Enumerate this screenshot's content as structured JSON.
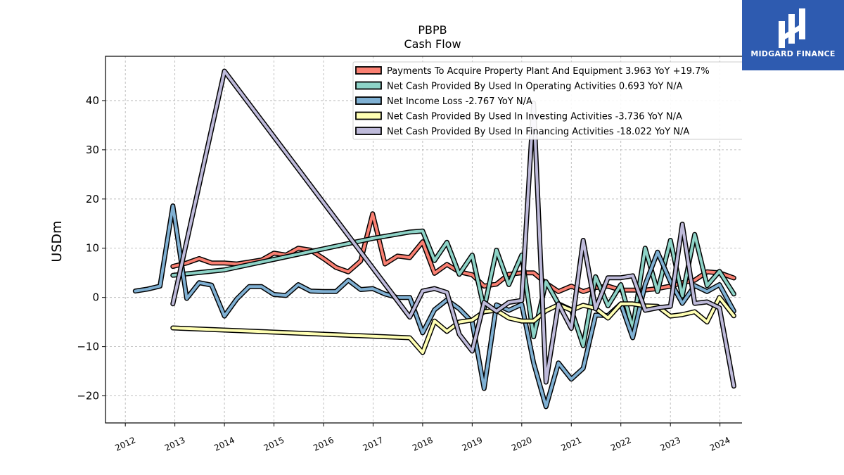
{
  "logo": {
    "text": "MIDGARD FINANCE"
  },
  "chart_data": {
    "type": "line",
    "title": "PBPB",
    "subtitle": "Cash Flow",
    "xlabel": "",
    "ylabel": "USDm",
    "xlim": [
      2011.6,
      2024.8
    ],
    "ylim": [
      -25.5,
      49
    ],
    "x_ticks": [
      "2012",
      "2013",
      "2014",
      "2015",
      "2016",
      "2017",
      "2018",
      "2019",
      "2020",
      "2021",
      "2022",
      "2023",
      "2024"
    ],
    "y_ticks": [
      40,
      30,
      20,
      10,
      0,
      -10,
      -20
    ],
    "y_tick_labels": [
      "40",
      "30",
      "20",
      "10",
      "0",
      "−10",
      "−20"
    ],
    "grid": true,
    "legend_position": "top-right",
    "series": [
      {
        "name": "Payments To Acquire Property Plant And Equipment  3.963 YoY +19.7%",
        "color": "#fa8072",
        "points": [
          [
            2012.96,
            6.3
          ],
          [
            2013.24,
            7.0
          ],
          [
            2013.49,
            7.9
          ],
          [
            2013.74,
            7.0
          ],
          [
            2014.0,
            7.0
          ],
          [
            2014.25,
            6.8
          ],
          [
            2014.5,
            7.2
          ],
          [
            2014.75,
            7.6
          ],
          [
            2015.0,
            9.0
          ],
          [
            2015.24,
            8.6
          ],
          [
            2015.49,
            10.0
          ],
          [
            2015.74,
            9.6
          ],
          [
            2016.0,
            7.9
          ],
          [
            2016.25,
            6.1
          ],
          [
            2016.5,
            5.2
          ],
          [
            2016.75,
            7.4
          ],
          [
            2016.99,
            17.0
          ],
          [
            2017.24,
            6.8
          ],
          [
            2017.49,
            8.4
          ],
          [
            2017.74,
            8.1
          ],
          [
            2018.0,
            11.3
          ],
          [
            2018.24,
            4.9
          ],
          [
            2018.49,
            6.7
          ],
          [
            2018.74,
            5.2
          ],
          [
            2019.0,
            4.6
          ],
          [
            2019.24,
            2.3
          ],
          [
            2019.49,
            2.7
          ],
          [
            2019.74,
            4.7
          ],
          [
            2020.0,
            5.0
          ],
          [
            2020.24,
            5.0
          ],
          [
            2020.49,
            2.9
          ],
          [
            2020.74,
            1.2
          ],
          [
            2021.0,
            2.3
          ],
          [
            2021.24,
            1.2
          ],
          [
            2021.49,
            2.0
          ],
          [
            2021.74,
            2.3
          ],
          [
            2022.0,
            1.5
          ],
          [
            2022.24,
            1.5
          ],
          [
            2022.49,
            1.5
          ],
          [
            2022.74,
            1.8
          ],
          [
            2023.0,
            2.3
          ],
          [
            2023.24,
            3.0
          ],
          [
            2023.49,
            3.5
          ],
          [
            2023.74,
            5.2
          ],
          [
            2023.99,
            5.0
          ],
          [
            2024.28,
            3.96
          ]
        ]
      },
      {
        "name": "Net Cash Provided By Used In Operating Activities  0.693 YoY N/A",
        "color": "#8dd3c7",
        "points": [
          [
            2012.96,
            4.5
          ],
          [
            2014.0,
            5.6
          ],
          [
            2016.99,
            12.0
          ],
          [
            2017.74,
            13.3
          ],
          [
            2018.0,
            13.5
          ],
          [
            2018.24,
            7.5
          ],
          [
            2018.49,
            11.2
          ],
          [
            2018.74,
            4.7
          ],
          [
            2019.0,
            8.6
          ],
          [
            2019.24,
            -2.3
          ],
          [
            2019.49,
            9.6
          ],
          [
            2019.74,
            2.6
          ],
          [
            2020.0,
            8.6
          ],
          [
            2020.24,
            -8.0
          ],
          [
            2020.49,
            3.2
          ],
          [
            2020.74,
            -1.3
          ],
          [
            2021.0,
            -2.5
          ],
          [
            2021.24,
            -9.8
          ],
          [
            2021.49,
            4.2
          ],
          [
            2021.74,
            -1.7
          ],
          [
            2022.0,
            2.6
          ],
          [
            2022.24,
            -6.3
          ],
          [
            2022.49,
            10.0
          ],
          [
            2022.74,
            1.2
          ],
          [
            2023.0,
            11.6
          ],
          [
            2023.24,
            0.3
          ],
          [
            2023.49,
            12.8
          ],
          [
            2023.74,
            2.4
          ],
          [
            2023.99,
            5.3
          ],
          [
            2024.28,
            0.69
          ]
        ]
      },
      {
        "name": "Net Income Loss  -2.767 YoY N/A",
        "color": "#7fb0d3",
        "points": [
          [
            2012.2,
            1.3
          ],
          [
            2012.45,
            1.7
          ],
          [
            2012.7,
            2.3
          ],
          [
            2012.96,
            18.6
          ],
          [
            2013.24,
            -0.2
          ],
          [
            2013.49,
            3.0
          ],
          [
            2013.74,
            2.5
          ],
          [
            2014.0,
            -3.8
          ],
          [
            2014.25,
            -0.3
          ],
          [
            2014.5,
            2.2
          ],
          [
            2014.75,
            2.2
          ],
          [
            2015.0,
            0.6
          ],
          [
            2015.24,
            0.4
          ],
          [
            2015.49,
            2.6
          ],
          [
            2015.74,
            1.3
          ],
          [
            2016.0,
            1.2
          ],
          [
            2016.25,
            1.2
          ],
          [
            2016.5,
            3.5
          ],
          [
            2016.75,
            1.6
          ],
          [
            2016.99,
            1.8
          ],
          [
            2017.24,
            0.7
          ],
          [
            2017.49,
            0.0
          ],
          [
            2017.74,
            0.0
          ],
          [
            2018.0,
            -7.2
          ],
          [
            2018.24,
            -2.5
          ],
          [
            2018.49,
            -0.5
          ],
          [
            2018.74,
            -2.3
          ],
          [
            2019.0,
            -5.0
          ],
          [
            2019.24,
            -18.5
          ],
          [
            2019.49,
            -1.5
          ],
          [
            2019.74,
            -2.6
          ],
          [
            2020.0,
            -1.4
          ],
          [
            2020.24,
            -13.3
          ],
          [
            2020.49,
            -22.2
          ],
          [
            2020.74,
            -13.3
          ],
          [
            2021.0,
            -16.6
          ],
          [
            2021.24,
            -14.4
          ],
          [
            2021.49,
            -3.6
          ],
          [
            2021.74,
            -3.7
          ],
          [
            2022.0,
            -1.3
          ],
          [
            2022.24,
            -8.2
          ],
          [
            2022.49,
            2.6
          ],
          [
            2022.74,
            9.2
          ],
          [
            2023.0,
            3.2
          ],
          [
            2023.24,
            -1.2
          ],
          [
            2023.49,
            2.4
          ],
          [
            2023.74,
            1.2
          ],
          [
            2023.99,
            2.6
          ],
          [
            2024.28,
            -2.77
          ]
        ]
      },
      {
        "name": "Net Cash Provided By Used In Investing Activities  -3.736 YoY N/A",
        "color": "#ffffb3",
        "points": [
          [
            2012.96,
            -6.2
          ],
          [
            2017.74,
            -8.2
          ],
          [
            2018.0,
            -11.2
          ],
          [
            2018.24,
            -4.8
          ],
          [
            2018.49,
            -6.9
          ],
          [
            2018.74,
            -5.0
          ],
          [
            2019.0,
            -4.6
          ],
          [
            2019.24,
            -2.9
          ],
          [
            2019.49,
            -2.6
          ],
          [
            2019.74,
            -4.2
          ],
          [
            2020.0,
            -4.8
          ],
          [
            2020.24,
            -4.8
          ],
          [
            2020.49,
            -2.7
          ],
          [
            2020.74,
            -1.5
          ],
          [
            2021.0,
            -2.6
          ],
          [
            2021.24,
            -1.6
          ],
          [
            2021.49,
            -2.2
          ],
          [
            2021.74,
            -4.2
          ],
          [
            2022.0,
            -1.3
          ],
          [
            2022.24,
            -1.3
          ],
          [
            2022.49,
            -1.7
          ],
          [
            2022.74,
            -1.8
          ],
          [
            2023.0,
            -3.8
          ],
          [
            2023.24,
            -3.5
          ],
          [
            2023.49,
            -2.9
          ],
          [
            2023.74,
            -5.0
          ],
          [
            2023.99,
            0.0
          ],
          [
            2024.28,
            -3.74
          ]
        ]
      },
      {
        "name": "Net Cash Provided By Used In Financing Activities  -18.022 YoY N/A",
        "color": "#bebada",
        "points": [
          [
            2012.96,
            -1.3
          ],
          [
            2014.0,
            46.0
          ],
          [
            2017.74,
            -4.0
          ],
          [
            2018.0,
            1.3
          ],
          [
            2018.24,
            1.8
          ],
          [
            2018.49,
            1.0
          ],
          [
            2018.74,
            -7.5
          ],
          [
            2019.0,
            -10.9
          ],
          [
            2019.24,
            -1.0
          ],
          [
            2019.49,
            -2.8
          ],
          [
            2019.74,
            -1.0
          ],
          [
            2020.0,
            -0.6
          ],
          [
            2020.24,
            39.5
          ],
          [
            2020.49,
            -17.2
          ],
          [
            2020.74,
            -1.3
          ],
          [
            2021.0,
            -6.3
          ],
          [
            2021.24,
            11.6
          ],
          [
            2021.49,
            -2.3
          ],
          [
            2021.74,
            4.0
          ],
          [
            2022.0,
            4.0
          ],
          [
            2022.24,
            4.4
          ],
          [
            2022.49,
            -2.6
          ],
          [
            2022.74,
            -2.1
          ],
          [
            2023.0,
            -1.8
          ],
          [
            2023.24,
            14.9
          ],
          [
            2023.49,
            -1.2
          ],
          [
            2023.74,
            -0.9
          ],
          [
            2023.99,
            -2.1
          ],
          [
            2024.28,
            -18.02
          ]
        ]
      }
    ]
  }
}
